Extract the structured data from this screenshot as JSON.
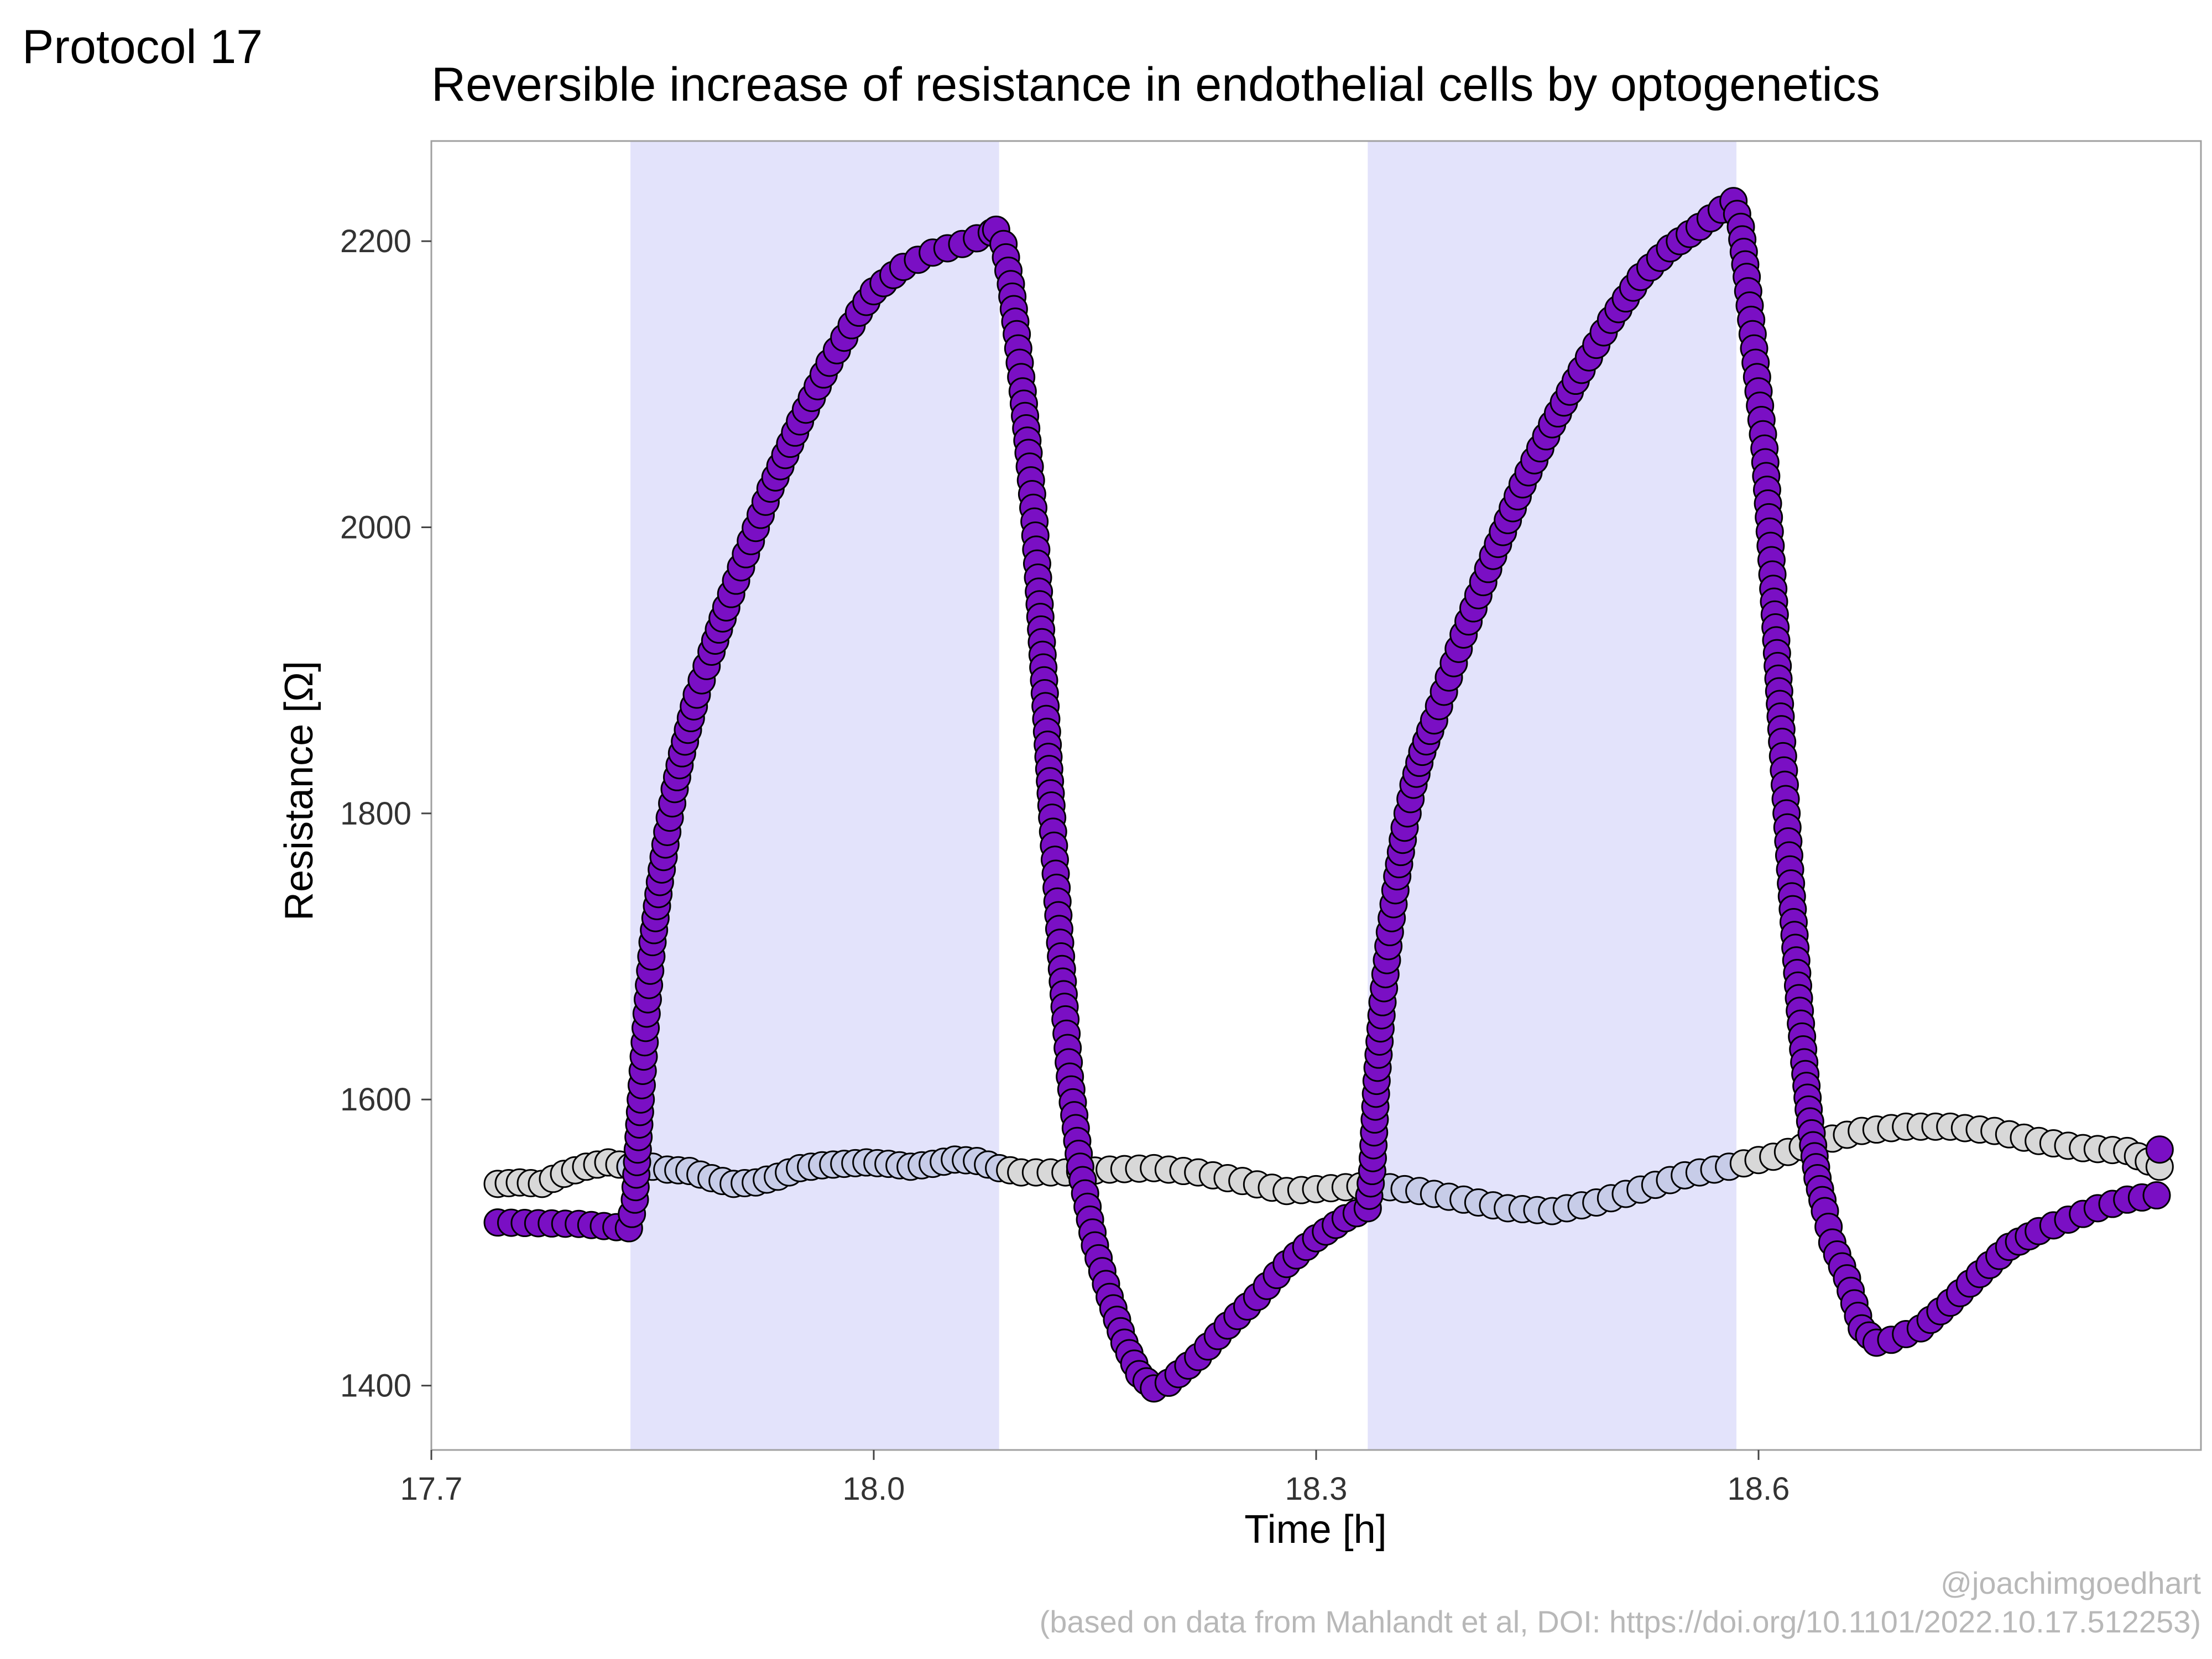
{
  "page": {
    "tag": "Protocol 17"
  },
  "captions": {
    "handle": "@joachimgoedhart",
    "source": "(based on data from Mahlandt et al, DOI: https://doi.org/10.1101/2022.10.17.512253)"
  },
  "colors": {
    "light_band": "#e3e3fb",
    "treated_line": "#7a0fc4",
    "treated_fill": "#7a0fc4",
    "control_fill_dark": "#d8d8d8",
    "control_fill_light": "#c7cce8",
    "marker_stroke": "#000000",
    "axis": "#a0a0a0"
  },
  "chart_data": {
    "type": "line",
    "title": "Reversible increase of resistance in endothelial cells by optogenetics",
    "xlabel": "Time [h]",
    "ylabel": "Resistance [Ω]",
    "xlim": [
      17.7,
      18.9
    ],
    "ylim": [
      1355,
      2270
    ],
    "x_ticks": [
      17.7,
      18.0,
      18.3,
      18.6
    ],
    "x_tick_labels": [
      "17.7",
      "18.0",
      "18.3",
      "18.6"
    ],
    "y_ticks": [
      1400,
      1600,
      1800,
      2000,
      2200
    ],
    "y_tick_labels": [
      "1400",
      "1600",
      "1800",
      "2000",
      "2200"
    ],
    "grid": false,
    "legend": "none",
    "light_periods": [
      [
        17.835,
        18.085
      ],
      [
        18.335,
        18.585
      ]
    ],
    "series": [
      {
        "role": "treated",
        "keypoints": [
          [
            17.745,
            1514
          ],
          [
            17.8,
            1513
          ],
          [
            17.834,
            1510
          ],
          [
            17.838,
            1530
          ],
          [
            17.842,
            1600
          ],
          [
            17.846,
            1660
          ],
          [
            17.85,
            1710
          ],
          [
            17.855,
            1752
          ],
          [
            17.86,
            1787
          ],
          [
            17.865,
            1817
          ],
          [
            17.87,
            1842
          ],
          [
            17.88,
            1883
          ],
          [
            17.89,
            1913
          ],
          [
            17.9,
            1944
          ],
          [
            17.91,
            1972
          ],
          [
            17.93,
            2027
          ],
          [
            17.95,
            2074
          ],
          [
            17.97,
            2115
          ],
          [
            17.99,
            2150
          ],
          [
            18.0,
            2165
          ],
          [
            18.02,
            2182
          ],
          [
            18.04,
            2192
          ],
          [
            18.06,
            2198
          ],
          [
            18.08,
            2206
          ],
          [
            18.083,
            2208
          ],
          [
            18.088,
            2198
          ],
          [
            18.093,
            2170
          ],
          [
            18.097,
            2135
          ],
          [
            18.101,
            2095
          ],
          [
            18.105,
            2052
          ],
          [
            18.109,
            2004
          ],
          [
            18.112,
            1955
          ],
          [
            18.115,
            1902
          ],
          [
            18.118,
            1848
          ],
          [
            18.121,
            1797
          ],
          [
            18.124,
            1748
          ],
          [
            18.127,
            1700
          ],
          [
            18.13,
            1656
          ],
          [
            18.133,
            1616
          ],
          [
            18.137,
            1580
          ],
          [
            18.14,
            1553
          ],
          [
            18.145,
            1525
          ],
          [
            18.15,
            1498
          ],
          [
            18.16,
            1462
          ],
          [
            18.17,
            1430
          ],
          [
            18.18,
            1408
          ],
          [
            18.19,
            1398
          ],
          [
            18.2,
            1402
          ],
          [
            18.22,
            1420
          ],
          [
            18.24,
            1442
          ],
          [
            18.26,
            1462
          ],
          [
            18.28,
            1485
          ],
          [
            18.3,
            1503
          ],
          [
            18.32,
            1517
          ],
          [
            18.335,
            1524
          ],
          [
            18.338,
            1550
          ],
          [
            18.341,
            1613
          ],
          [
            18.345,
            1668
          ],
          [
            18.35,
            1717
          ],
          [
            18.355,
            1756
          ],
          [
            18.36,
            1790
          ],
          [
            18.366,
            1820
          ],
          [
            18.372,
            1843
          ],
          [
            18.38,
            1865
          ],
          [
            18.39,
            1895
          ],
          [
            18.4,
            1925
          ],
          [
            18.42,
            1980
          ],
          [
            18.44,
            2030
          ],
          [
            18.46,
            2072
          ],
          [
            18.48,
            2110
          ],
          [
            18.5,
            2145
          ],
          [
            18.52,
            2175
          ],
          [
            18.54,
            2195
          ],
          [
            18.56,
            2210
          ],
          [
            18.575,
            2222
          ],
          [
            18.583,
            2228
          ],
          [
            18.588,
            2210
          ],
          [
            18.592,
            2175
          ],
          [
            18.596,
            2135
          ],
          [
            18.6,
            2095
          ],
          [
            18.604,
            2055
          ],
          [
            18.607,
            2007
          ],
          [
            18.61,
            1957
          ],
          [
            18.613,
            1903
          ],
          [
            18.616,
            1850
          ],
          [
            18.619,
            1800
          ],
          [
            18.622,
            1751
          ],
          [
            18.625,
            1706
          ],
          [
            18.628,
            1662
          ],
          [
            18.631,
            1626
          ],
          [
            18.634,
            1593
          ],
          [
            18.637,
            1568
          ],
          [
            18.64,
            1545
          ],
          [
            18.645,
            1522
          ],
          [
            18.65,
            1500
          ],
          [
            18.66,
            1475
          ],
          [
            18.67,
            1440
          ],
          [
            18.68,
            1430
          ],
          [
            18.69,
            1432
          ],
          [
            18.71,
            1440
          ],
          [
            18.73,
            1458
          ],
          [
            18.75,
            1478
          ],
          [
            18.77,
            1497
          ],
          [
            18.79,
            1508
          ],
          [
            18.81,
            1516
          ],
          [
            18.83,
            1524
          ],
          [
            18.85,
            1530
          ],
          [
            18.87,
            1533
          ]
        ],
        "end_marker": [
          18.872,
          1565
        ]
      },
      {
        "role": "control",
        "keypoints": [
          [
            17.745,
            1541
          ],
          [
            17.76,
            1542
          ],
          [
            17.775,
            1541
          ],
          [
            17.79,
            1548
          ],
          [
            17.805,
            1553
          ],
          [
            17.82,
            1556
          ],
          [
            17.835,
            1553
          ],
          [
            17.85,
            1553
          ],
          [
            17.86,
            1551
          ],
          [
            17.875,
            1550
          ],
          [
            17.89,
            1545
          ],
          [
            17.905,
            1541
          ],
          [
            17.92,
            1542
          ],
          [
            17.935,
            1546
          ],
          [
            17.95,
            1552
          ],
          [
            17.965,
            1554
          ],
          [
            17.98,
            1555
          ],
          [
            17.995,
            1556
          ],
          [
            18.01,
            1555
          ],
          [
            18.025,
            1553
          ],
          [
            18.04,
            1555
          ],
          [
            18.055,
            1558
          ],
          [
            18.07,
            1557
          ],
          [
            18.085,
            1552
          ],
          [
            18.1,
            1549
          ],
          [
            18.13,
            1549
          ],
          [
            18.16,
            1551
          ],
          [
            18.19,
            1552
          ],
          [
            18.22,
            1549
          ],
          [
            18.25,
            1543
          ],
          [
            18.28,
            1536
          ],
          [
            18.31,
            1538
          ],
          [
            18.34,
            1540
          ],
          [
            18.37,
            1536
          ],
          [
            18.4,
            1530
          ],
          [
            18.43,
            1524
          ],
          [
            18.46,
            1522
          ],
          [
            18.49,
            1528
          ],
          [
            18.52,
            1537
          ],
          [
            18.55,
            1547
          ],
          [
            18.58,
            1553
          ],
          [
            18.61,
            1560
          ],
          [
            18.64,
            1570
          ],
          [
            18.67,
            1578
          ],
          [
            18.7,
            1581
          ],
          [
            18.73,
            1581
          ],
          [
            18.76,
            1578
          ],
          [
            18.79,
            1571
          ],
          [
            18.82,
            1566
          ],
          [
            18.85,
            1564
          ],
          [
            18.872,
            1553
          ]
        ]
      }
    ]
  }
}
